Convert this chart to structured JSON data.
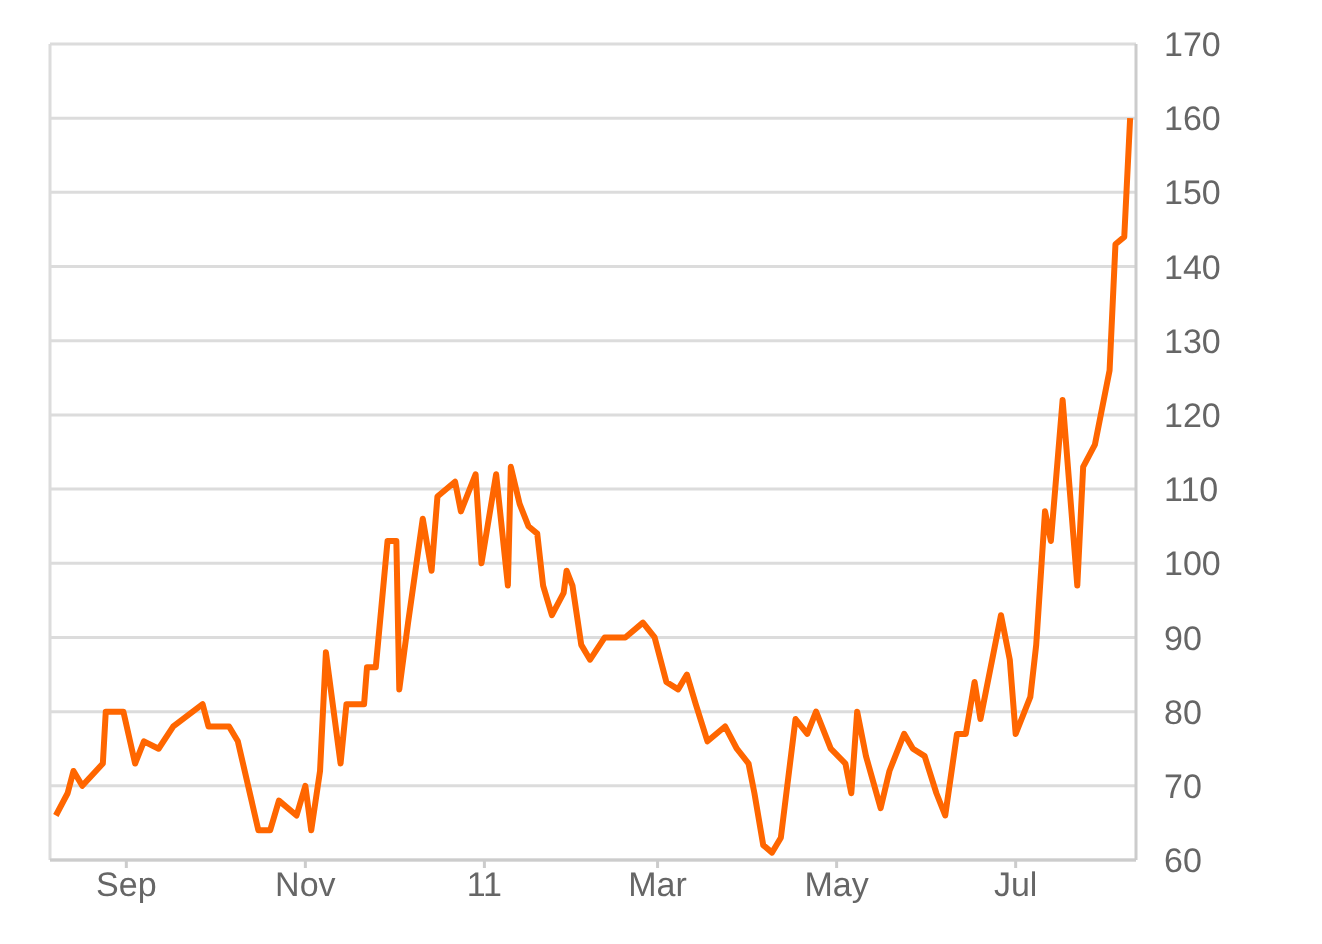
{
  "chart_data": {
    "type": "line",
    "x": [
      "2010-08-08",
      "2010-08-12",
      "2010-08-14",
      "2010-08-17",
      "2010-08-24",
      "2010-08-25",
      "2010-08-31",
      "2010-09-04",
      "2010-09-07",
      "2010-09-12",
      "2010-09-17",
      "2010-09-27",
      "2010-09-29",
      "2010-10-06",
      "2010-10-09",
      "2010-10-16",
      "2010-10-20",
      "2010-10-23",
      "2010-10-29",
      "2010-11-01",
      "2010-11-03",
      "2010-11-06",
      "2010-11-08",
      "2010-11-09",
      "2010-11-13",
      "2010-11-15",
      "2010-11-21",
      "2010-11-22",
      "2010-11-25",
      "2010-11-29",
      "2010-12-02",
      "2010-12-03",
      "2010-12-06",
      "2010-12-11",
      "2010-12-14",
      "2010-12-16",
      "2010-12-22",
      "2010-12-24",
      "2010-12-29",
      "2010-12-31",
      "2011-01-05",
      "2011-01-09",
      "2011-01-10",
      "2011-01-13",
      "2011-01-16",
      "2011-01-19",
      "2011-01-21",
      "2011-01-24",
      "2011-01-28",
      "2011-01-29",
      "2011-01-31",
      "2011-02-03",
      "2011-02-06",
      "2011-02-11",
      "2011-02-18",
      "2011-02-24",
      "2011-02-28",
      "2011-03-04",
      "2011-03-08",
      "2011-03-11",
      "2011-03-14",
      "2011-03-18",
      "2011-03-24",
      "2011-03-28",
      "2011-04-01",
      "2011-04-03",
      "2011-04-06",
      "2011-04-09",
      "2011-04-12",
      "2011-04-17",
      "2011-04-21",
      "2011-04-24",
      "2011-04-29",
      "2011-05-04",
      "2011-05-06",
      "2011-05-08",
      "2011-05-11",
      "2011-05-16",
      "2011-05-19",
      "2011-05-24",
      "2011-05-27",
      "2011-05-31",
      "2011-06-04",
      "2011-06-07",
      "2011-06-11",
      "2011-06-14",
      "2011-06-17",
      "2011-06-19",
      "2011-06-21",
      "2011-06-26",
      "2011-06-29",
      "2011-07-01",
      "2011-07-06",
      "2011-07-08",
      "2011-07-11",
      "2011-07-13",
      "2011-07-17",
      "2011-07-22",
      "2011-07-24",
      "2011-07-28",
      "2011-08-02",
      "2011-08-04",
      "2011-08-07",
      "2011-08-09"
    ],
    "series": [
      {
        "color": "#ff6600",
        "values": [
          66,
          69,
          72,
          70,
          73,
          80,
          80,
          73,
          76,
          75,
          78,
          81,
          78,
          78,
          76,
          64,
          64,
          68,
          66,
          70,
          64,
          72,
          88,
          85,
          73,
          81,
          81,
          86,
          86,
          103,
          103,
          83,
          92,
          106,
          99,
          109,
          111,
          107,
          112,
          100,
          112,
          97,
          113,
          108,
          105,
          104,
          97,
          93,
          96,
          99,
          97,
          89,
          87,
          90,
          90,
          92,
          90,
          84,
          83,
          85,
          81,
          76,
          78,
          75,
          73,
          69,
          62,
          61,
          63,
          79,
          77,
          80,
          75,
          73,
          69,
          80,
          74,
          67,
          72,
          77,
          75,
          74,
          69,
          66,
          77,
          77,
          84,
          79,
          83,
          93,
          87,
          77,
          82,
          89,
          107,
          103,
          122,
          97,
          113,
          116,
          126,
          143,
          144,
          160
        ]
      }
    ],
    "xlim": [
      "2010-08-06",
      "2011-08-11"
    ],
    "xticks": [
      {
        "value": "2010-09-01",
        "label": "Sep"
      },
      {
        "value": "2010-11-01",
        "label": "Nov"
      },
      {
        "value": "2011-01-01",
        "label": "11"
      },
      {
        "value": "2011-03-01",
        "label": "Mar"
      },
      {
        "value": "2011-05-01",
        "label": "May"
      },
      {
        "value": "2011-07-01",
        "label": "Jul"
      }
    ],
    "ylim": [
      60,
      170
    ],
    "yticks": [
      60,
      70,
      80,
      90,
      100,
      110,
      120,
      130,
      140,
      150,
      160,
      170
    ],
    "grid": "y",
    "legend": false,
    "marker": "none",
    "line_style": "solid"
  }
}
